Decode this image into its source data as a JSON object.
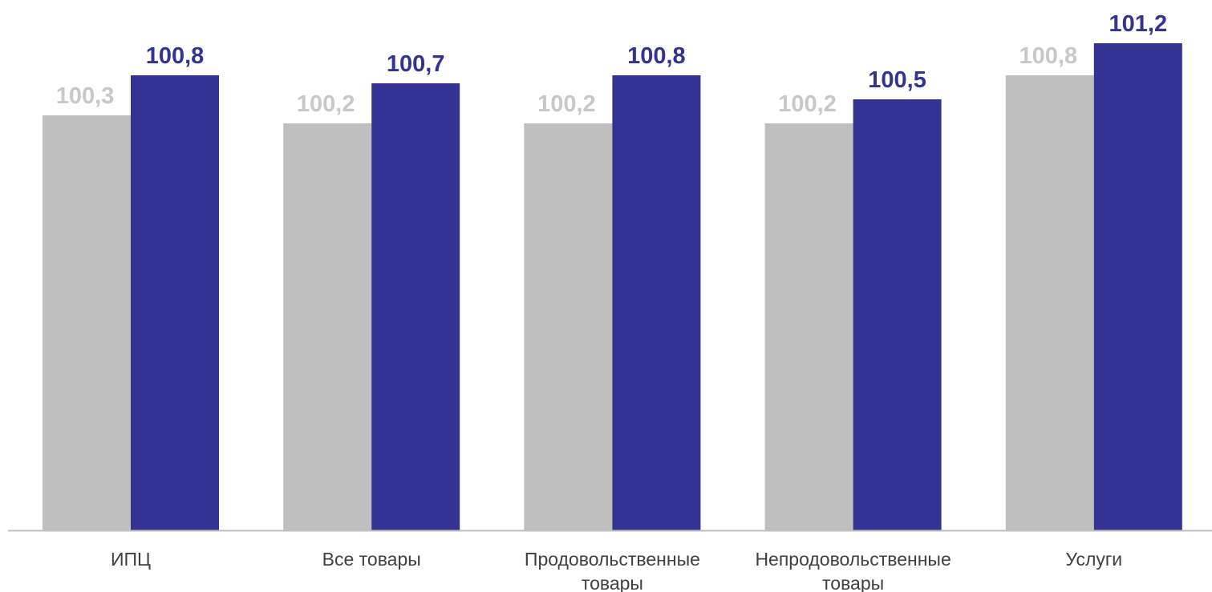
{
  "chart_data": {
    "type": "bar",
    "categories": [
      [
        "ИПЦ"
      ],
      [
        "Все товары"
      ],
      [
        "Продовольственные",
        "товары"
      ],
      [
        "Непродовольственные",
        "товары"
      ],
      [
        "Услуги"
      ]
    ],
    "series": [
      {
        "values": [
          100.3,
          100.2,
          100.2,
          100.2,
          100.8
        ],
        "labels": [
          "100,3",
          "100,2",
          "100,2",
          "100,2",
          "100,8"
        ],
        "color": "#bfbfbf",
        "label_color": "#c8c8c8"
      },
      {
        "values": [
          100.8,
          100.7,
          100.8,
          100.5,
          101.2
        ],
        "labels": [
          "100,8",
          "100,7",
          "100,8",
          "100,5",
          "101,2"
        ],
        "color": "#333393",
        "label_color": "#333393"
      }
    ],
    "xlabel": "",
    "ylabel": "",
    "grid": false,
    "axis_color": "#bfbfbf"
  }
}
